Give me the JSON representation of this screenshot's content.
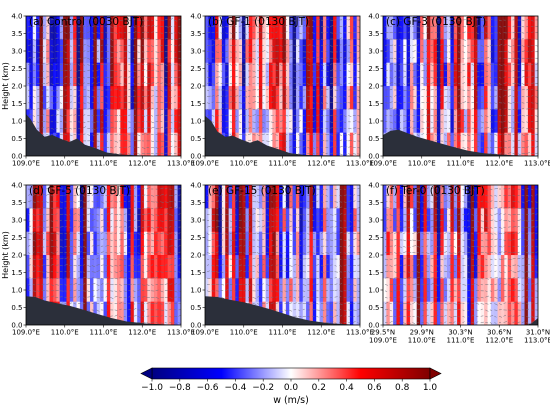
{
  "figure": {
    "ylabel": "Height (km)",
    "colorbar": {
      "label": "w (m/s)",
      "vmin": -1.0,
      "vmax": 1.0,
      "ticks": [
        "−1.0",
        "−0.8",
        "−0.6",
        "−0.4",
        "−0.2",
        "0.0",
        "0.2",
        "0.4",
        "0.6",
        "0.8",
        "1.0"
      ],
      "colormap": "seismic (blue-white-red)",
      "extend": "both"
    },
    "terrain_color": "#2b2f3a",
    "vector_color": "#6e6e7a"
  },
  "chart_data": [
    {
      "type": "heatmap",
      "title": "(a) Control (0030 BJT)",
      "ylabel": "Height (km)",
      "ylim": [
        0,
        4
      ],
      "yticks": [
        "0.0",
        "0.5",
        "1.0",
        "1.5",
        "2.0",
        "2.5",
        "3.0",
        "3.5",
        "4.0"
      ],
      "xticks": [
        "109.0°E",
        "110.0°E",
        "111.0°E",
        "112.0°E",
        "113.0°E"
      ],
      "xticks2": [],
      "terrain": [
        [
          0,
          1.2
        ],
        [
          0.03,
          1.05
        ],
        [
          0.07,
          0.75
        ],
        [
          0.12,
          0.55
        ],
        [
          0.17,
          0.6
        ],
        [
          0.22,
          0.5
        ],
        [
          0.28,
          0.4
        ],
        [
          0.33,
          0.5
        ],
        [
          0.38,
          0.32
        ],
        [
          0.45,
          0.22
        ],
        [
          0.52,
          0.1
        ],
        [
          0.6,
          0.05
        ],
        [
          0.7,
          0.02
        ],
        [
          1.0,
          0.0
        ]
      ],
      "seed": 11
    },
    {
      "type": "heatmap",
      "title": "(b) GF-1 (0130 BJT)",
      "ylabel": "",
      "ylim": [
        0,
        4
      ],
      "yticks": [
        "0.0",
        "0.5",
        "1.0",
        "1.5",
        "2.0",
        "2.5",
        "3.0",
        "3.5",
        "4.0"
      ],
      "xticks": [
        "109.0°E",
        "110.0°E",
        "111.0°E",
        "112.0°E",
        "113.0°E"
      ],
      "xticks2": [],
      "terrain": [
        [
          0,
          1.15
        ],
        [
          0.04,
          1.0
        ],
        [
          0.08,
          0.7
        ],
        [
          0.13,
          0.55
        ],
        [
          0.18,
          0.58
        ],
        [
          0.23,
          0.48
        ],
        [
          0.29,
          0.38
        ],
        [
          0.34,
          0.45
        ],
        [
          0.4,
          0.3
        ],
        [
          0.47,
          0.2
        ],
        [
          0.55,
          0.08
        ],
        [
          0.65,
          0.03
        ],
        [
          1.0,
          0.0
        ]
      ],
      "seed": 23
    },
    {
      "type": "heatmap",
      "title": "(c) GF-3 (0130 BJT)",
      "ylabel": "",
      "ylim": [
        0,
        4
      ],
      "yticks": [
        "0.0",
        "0.5",
        "1.0",
        "1.5",
        "2.0",
        "2.5",
        "3.0",
        "3.5",
        "4.0"
      ],
      "xticks": [
        "109.0°E",
        "110.0°E",
        "111.0°E",
        "112.0°E",
        "113.0°E"
      ],
      "xticks2": [],
      "terrain": [
        [
          0,
          0.6
        ],
        [
          0.05,
          0.72
        ],
        [
          0.1,
          0.75
        ],
        [
          0.16,
          0.65
        ],
        [
          0.22,
          0.55
        ],
        [
          0.3,
          0.45
        ],
        [
          0.38,
          0.35
        ],
        [
          0.46,
          0.25
        ],
        [
          0.55,
          0.15
        ],
        [
          0.65,
          0.08
        ],
        [
          0.8,
          0.03
        ],
        [
          1.0,
          0.0
        ]
      ],
      "seed": 37
    },
    {
      "type": "heatmap",
      "title": "(d) GF-5 (0130 BJT)",
      "ylabel": "Height (km)",
      "ylim": [
        0,
        4
      ],
      "yticks": [
        "0.0",
        "0.5",
        "1.0",
        "1.5",
        "2.0",
        "2.5",
        "3.0",
        "3.5",
        "4.0"
      ],
      "xticks": [
        "109.0°E",
        "110.0°E",
        "111.0°E",
        "112.0°E",
        "113.0°E"
      ],
      "xticks2": [],
      "terrain": [
        [
          0,
          0.82
        ],
        [
          0.06,
          0.8
        ],
        [
          0.12,
          0.7
        ],
        [
          0.2,
          0.62
        ],
        [
          0.28,
          0.55
        ],
        [
          0.36,
          0.45
        ],
        [
          0.45,
          0.33
        ],
        [
          0.55,
          0.2
        ],
        [
          0.65,
          0.1
        ],
        [
          0.78,
          0.04
        ],
        [
          1.0,
          0.0
        ]
      ],
      "seed": 41
    },
    {
      "type": "heatmap",
      "title": "(e) GF-15 (0130 BJT)",
      "ylabel": "",
      "ylim": [
        0,
        4
      ],
      "yticks": [
        "0.0",
        "0.5",
        "1.0",
        "1.5",
        "2.0",
        "2.5",
        "3.0",
        "3.5",
        "4.0"
      ],
      "xticks": [
        "109.0°E",
        "110.0°E",
        "111.0°E",
        "112.0°E",
        "113.0°E"
      ],
      "xticks2": [],
      "terrain": [
        [
          0,
          0.82
        ],
        [
          0.08,
          0.8
        ],
        [
          0.16,
          0.72
        ],
        [
          0.25,
          0.65
        ],
        [
          0.34,
          0.55
        ],
        [
          0.42,
          0.45
        ],
        [
          0.5,
          0.34
        ],
        [
          0.58,
          0.22
        ],
        [
          0.68,
          0.12
        ],
        [
          0.8,
          0.05
        ],
        [
          1.0,
          0.0
        ]
      ],
      "seed": 59
    },
    {
      "type": "heatmap",
      "title": "(f) Ter-0 (0130 BJT)",
      "ylabel": "",
      "ylim": [
        0,
        4
      ],
      "yticks": [
        "0.0",
        "0.5",
        "1.0",
        "1.5",
        "2.0",
        "2.5",
        "3.0",
        "3.5",
        "4.0"
      ],
      "xticks": [
        "29.5°N",
        "29.9°N",
        "30.3°N",
        "30.6°N",
        "31.0°N"
      ],
      "xticks2": [
        "109.0°E",
        "110.0°E",
        "111.0°E",
        "112.0°E",
        "113.0°E"
      ],
      "terrain": [
        [
          0,
          0.0
        ],
        [
          0.92,
          0.0
        ],
        [
          0.96,
          0.05
        ],
        [
          1.0,
          0.2
        ]
      ],
      "seed": 71
    }
  ]
}
